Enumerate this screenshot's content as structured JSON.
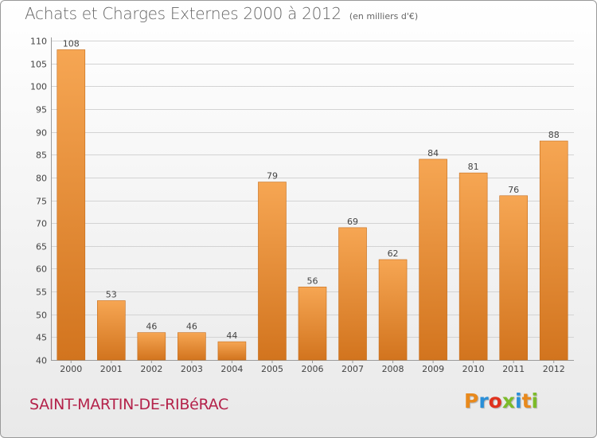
{
  "header": {
    "title": "Achats et Charges Externes 2000 à 2012",
    "unit": "(en milliers d'€)"
  },
  "footer": {
    "commune": "SAINT-MARTIN-DE-RIBéRAC",
    "logo": "Proxiti",
    "logo_colors": [
      "#e8891c",
      "#2a8fd8",
      "#e0321e",
      "#7cbb2a",
      "#2a8fd8",
      "#e8891c",
      "#7cbb2a"
    ]
  },
  "colors": {
    "bar_top": "#f6a653",
    "bar_bottom": "#d2741e",
    "grid": "#d3d3d3",
    "axis_text": "#444444",
    "title": "#666666",
    "commune": "#b4224a"
  },
  "chart_data": {
    "type": "bar",
    "categories": [
      "2000",
      "2001",
      "2002",
      "2003",
      "2004",
      "2005",
      "2006",
      "2007",
      "2008",
      "2009",
      "2010",
      "2011",
      "2012"
    ],
    "values": [
      108,
      53,
      46,
      46,
      44,
      79,
      56,
      69,
      62,
      84,
      81,
      76,
      88
    ],
    "ylim": [
      40,
      110
    ],
    "yticks": [
      40,
      45,
      50,
      55,
      60,
      65,
      70,
      75,
      80,
      85,
      90,
      95,
      100,
      105,
      110
    ],
    "grid": true,
    "data_labels": true
  }
}
